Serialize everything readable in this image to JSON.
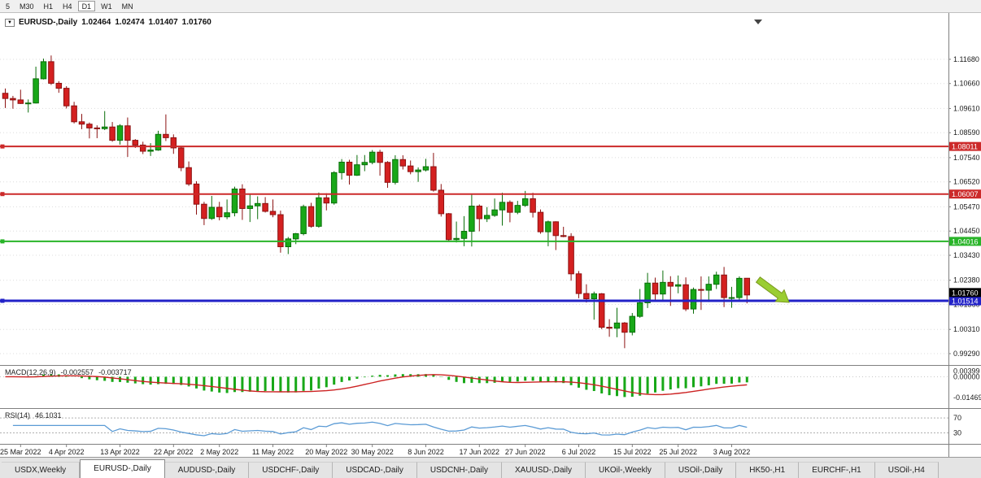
{
  "toolbar": {
    "periods": [
      {
        "label": "5",
        "active": false
      },
      {
        "label": "M30",
        "active": false
      },
      {
        "label": "H1",
        "active": false
      },
      {
        "label": "H4",
        "active": false
      },
      {
        "label": "D1",
        "active": true
      },
      {
        "label": "W1",
        "active": false
      },
      {
        "label": "MN",
        "active": false
      }
    ]
  },
  "chart": {
    "title": {
      "symbol": "EURUSD-,Daily",
      "open": "1.02464",
      "high": "1.02474",
      "low": "1.01407",
      "close": "1.01760"
    }
  },
  "indicators": {
    "macd": {
      "label": "MACD(12,26,9)",
      "value": "-0.002557",
      "signal_value": "-0.003717"
    },
    "rsi": {
      "label": "RSI(14)",
      "value": "46.1031"
    }
  },
  "price_axis": {
    "ticks": [
      "1.11680",
      "1.10660",
      "1.09610",
      "1.08590",
      "1.07540",
      "1.06520",
      "1.05470",
      "1.04450",
      "1.03430",
      "1.02380",
      "1.01360",
      "1.00310",
      "0.99290"
    ],
    "current": {
      "label": "1.01760",
      "price": 1.0176,
      "color": "#000000"
    }
  },
  "tabs": [
    {
      "label": "USDX,Weekly",
      "active": false
    },
    {
      "label": "EURUSD-,Daily",
      "active": true
    },
    {
      "label": "AUDUSD-,Daily",
      "active": false
    },
    {
      "label": "USDCHF-,Daily",
      "active": false
    },
    {
      "label": "USDCAD-,Daily",
      "active": false
    },
    {
      "label": "USDCNH-,Daily",
      "active": false
    },
    {
      "label": "XAUUSD-,Daily",
      "active": false
    },
    {
      "label": "UKOil-,Weekly",
      "active": false
    },
    {
      "label": "USOil-,Daily",
      "active": false
    },
    {
      "label": "HK50-,H1",
      "active": false
    },
    {
      "label": "EURCHF-,H1",
      "active": false
    },
    {
      "label": "USOil-,H4",
      "active": false
    }
  ],
  "chart_data": {
    "type": "candlestick",
    "title": "EURUSD-,Daily",
    "ohlc_display": "1.02464 1.02474 1.01407 1.01760",
    "y_axis": {
      "min": 0.9888,
      "max": 1.1356
    },
    "macd_scale": {
      "min": -0.021,
      "max": 0.006
    },
    "rsi_scale": {
      "min": 5,
      "max": 90
    },
    "colors": {
      "bull": "#18a818",
      "bull_border": "#0a6e0a",
      "bear": "#d42020",
      "bear_border": "#8c1212",
      "macd_hist": "#18a818",
      "macd_signal": "#cc2222",
      "rsi": "#5b9bd5",
      "grid": "#dcdcdc"
    },
    "hlines": [
      {
        "label": "1.08011",
        "price": 1.08011,
        "color": "#cc2a2a",
        "width": 2
      },
      {
        "label": "1.06007",
        "price": 1.06007,
        "color": "#cc2a2a",
        "width": 2
      },
      {
        "label": "1.04016",
        "price": 1.04016,
        "color": "#28b428",
        "width": 2
      },
      {
        "label": "1.01514",
        "price": 1.01514,
        "color": "#2222c8",
        "width": 3
      }
    ],
    "annotations": {
      "arrow": {
        "color": "#9acd32",
        "border": "#7a9a1e",
        "direction": "down-right"
      }
    },
    "macd_axis_labels": [
      {
        "text": "0.00399",
        "value": 0.00399
      },
      {
        "text": "0.00000",
        "value": 0
      },
      {
        "text": "-0.01469",
        "value": -0.01469
      }
    ],
    "rsi_levels": [
      70,
      30
    ],
    "x_ticks": [
      {
        "label": "25 Mar 2022",
        "index": 2
      },
      {
        "label": "4 Apr 2022",
        "index": 8
      },
      {
        "label": "13 Apr 2022",
        "index": 15
      },
      {
        "label": "22 Apr 2022",
        "index": 22
      },
      {
        "label": "2 May 2022",
        "index": 28
      },
      {
        "label": "11 May 2022",
        "index": 35
      },
      {
        "label": "20 May 2022",
        "index": 42
      },
      {
        "label": "30 May 2022",
        "index": 48
      },
      {
        "label": "8 Jun 2022",
        "index": 55
      },
      {
        "label": "17 Jun 2022",
        "index": 62
      },
      {
        "label": "27 Jun 2022",
        "index": 68
      },
      {
        "label": "6 Jul 2022",
        "index": 75
      },
      {
        "label": "15 Jul 2022",
        "index": 82
      },
      {
        "label": "25 Jul 2022",
        "index": 88
      },
      {
        "label": "3 Aug 2022",
        "index": 95
      }
    ],
    "candles": [
      [
        1.1025,
        1.1045,
        1.0963,
        1.1003
      ],
      [
        1.1003,
        1.1014,
        1.096,
        1.0997
      ],
      [
        1.0997,
        1.104,
        1.098,
        1.0982
      ],
      [
        1.0982,
        1.0999,
        1.0944,
        1.0984
      ],
      [
        1.0984,
        1.1137,
        1.0982,
        1.1086
      ],
      [
        1.1086,
        1.1171,
        1.1083,
        1.1158
      ],
      [
        1.1158,
        1.1184,
        1.106,
        1.1067
      ],
      [
        1.1067,
        1.1076,
        1.1027,
        1.1046
      ],
      [
        1.1046,
        1.1055,
        1.0961,
        1.0972
      ],
      [
        1.0972,
        1.0989,
        1.0898,
        1.0905
      ],
      [
        1.0905,
        1.0938,
        1.0874,
        1.0895
      ],
      [
        1.0895,
        1.0902,
        1.0835,
        1.0879
      ],
      [
        1.0879,
        1.089,
        1.0836,
        1.0876
      ],
      [
        1.0876,
        1.095,
        1.087,
        1.0883
      ],
      [
        1.0883,
        1.0904,
        1.0821,
        1.0827
      ],
      [
        1.0827,
        1.0895,
        1.0809,
        1.0888
      ],
      [
        1.0888,
        1.0923,
        1.0757,
        1.0827
      ],
      [
        1.0827,
        1.0832,
        1.0795,
        1.0807
      ],
      [
        1.0807,
        1.0821,
        1.0769,
        1.0781
      ],
      [
        1.0781,
        1.0815,
        1.0761,
        1.0786
      ],
      [
        1.0786,
        1.0867,
        1.0783,
        1.0852
      ],
      [
        1.0852,
        1.0936,
        1.0824,
        1.0838
      ],
      [
        1.0838,
        1.0852,
        1.077,
        1.0795
      ],
      [
        1.0795,
        1.0803,
        1.0697,
        1.0712
      ],
      [
        1.0712,
        1.0738,
        1.0635,
        1.0643
      ],
      [
        1.0643,
        1.0655,
        1.0514,
        1.0558
      ],
      [
        1.0558,
        1.0568,
        1.047,
        1.0498
      ],
      [
        1.0498,
        1.0593,
        1.0492,
        1.0545
      ],
      [
        1.0545,
        1.0568,
        1.049,
        1.0505
      ],
      [
        1.0505,
        1.0578,
        1.0495,
        1.0522
      ],
      [
        1.0522,
        1.0632,
        1.0507,
        1.0622
      ],
      [
        1.0622,
        1.0642,
        1.0492,
        1.054
      ],
      [
        1.054,
        1.0599,
        1.0483,
        1.0551
      ],
      [
        1.0551,
        1.0591,
        1.0495,
        1.0561
      ],
      [
        1.0561,
        1.0588,
        1.0523,
        1.0528
      ],
      [
        1.0528,
        1.0578,
        1.0503,
        1.0514
      ],
      [
        1.0514,
        1.0531,
        1.0354,
        1.0379
      ],
      [
        1.0379,
        1.042,
        1.0348,
        1.0412
      ],
      [
        1.0412,
        1.0437,
        1.039,
        1.0434
      ],
      [
        1.0434,
        1.0556,
        1.0427,
        1.0548
      ],
      [
        1.0548,
        1.0564,
        1.0459,
        1.0465
      ],
      [
        1.0465,
        1.0607,
        1.0459,
        1.0585
      ],
      [
        1.0585,
        1.0604,
        1.0532,
        1.0563
      ],
      [
        1.0563,
        1.0697,
        1.0556,
        1.0691
      ],
      [
        1.0691,
        1.0748,
        1.0662,
        1.0735
      ],
      [
        1.0735,
        1.0745,
        1.0641,
        1.068
      ],
      [
        1.068,
        1.0765,
        1.0677,
        1.0724
      ],
      [
        1.0724,
        1.0765,
        1.0697,
        1.0734
      ],
      [
        1.0734,
        1.0786,
        1.0726,
        1.0777
      ],
      [
        1.0777,
        1.0787,
        1.0678,
        1.0734
      ],
      [
        1.0734,
        1.0739,
        1.0627,
        1.065
      ],
      [
        1.065,
        1.0764,
        1.0641,
        1.0746
      ],
      [
        1.0746,
        1.0764,
        1.0704,
        1.0719
      ],
      [
        1.0719,
        1.0742,
        1.0684,
        1.0695
      ],
      [
        1.0695,
        1.0713,
        1.0652,
        1.0702
      ],
      [
        1.0702,
        1.0749,
        1.0696,
        1.0716
      ],
      [
        1.0716,
        1.0774,
        1.0611,
        1.0617
      ],
      [
        1.0617,
        1.0643,
        1.0506,
        1.0518
      ],
      [
        1.0518,
        1.0521,
        1.0399,
        1.0409
      ],
      [
        1.0409,
        1.0485,
        1.0397,
        1.0414
      ],
      [
        1.0414,
        1.0508,
        1.0381,
        1.0444
      ],
      [
        1.0444,
        1.0601,
        1.038,
        1.055
      ],
      [
        1.055,
        1.0557,
        1.0444,
        1.0497
      ],
      [
        1.0497,
        1.0546,
        1.0483,
        1.0511
      ],
      [
        1.0511,
        1.0582,
        1.0505,
        1.0534
      ],
      [
        1.0534,
        1.0606,
        1.0468,
        1.0566
      ],
      [
        1.0566,
        1.0574,
        1.0482,
        1.0524
      ],
      [
        1.0524,
        1.0572,
        1.0516,
        1.0553
      ],
      [
        1.0553,
        1.0614,
        1.0547,
        1.0581
      ],
      [
        1.0581,
        1.0606,
        1.0502,
        1.0524
      ],
      [
        1.0524,
        1.0536,
        1.0434,
        1.0442
      ],
      [
        1.0442,
        1.0489,
        1.0381,
        1.0484
      ],
      [
        1.0484,
        1.0486,
        1.0365,
        1.0426
      ],
      [
        1.0426,
        1.0463,
        1.0419,
        1.0422
      ],
      [
        1.0422,
        1.0436,
        1.0236,
        1.0265
      ],
      [
        1.0265,
        1.0277,
        1.0162,
        1.0182
      ],
      [
        1.0182,
        1.0221,
        1.0144,
        1.016
      ],
      [
        1.016,
        1.019,
        1.0072,
        1.0181
      ],
      [
        1.0181,
        1.0184,
        1.0032,
        1.004
      ],
      [
        1.004,
        1.0074,
        1.0,
        1.0036
      ],
      [
        1.0036,
        1.0122,
        0.9998,
        1.0058
      ],
      [
        1.0058,
        1.0062,
        0.9952,
        1.0019
      ],
      [
        1.0019,
        1.01,
        1.0006,
        1.0086
      ],
      [
        1.0086,
        1.0201,
        1.008,
        1.0143
      ],
      [
        1.0143,
        1.0269,
        1.0121,
        1.0226
      ],
      [
        1.0226,
        1.0249,
        1.0155,
        1.018
      ],
      [
        1.018,
        1.0279,
        1.0151,
        1.0229
      ],
      [
        1.0229,
        1.0255,
        1.013,
        1.0213
      ],
      [
        1.0213,
        1.0258,
        1.0183,
        1.0219
      ],
      [
        1.0219,
        1.025,
        1.0108,
        1.0117
      ],
      [
        1.0117,
        1.0207,
        1.0097,
        1.0199
      ],
      [
        1.0199,
        1.0254,
        1.0113,
        1.0196
      ],
      [
        1.0196,
        1.0254,
        1.0146,
        1.0221
      ],
      [
        1.0221,
        1.0274,
        1.0201,
        1.026
      ],
      [
        1.026,
        1.0294,
        1.0125,
        1.0165
      ],
      [
        1.0165,
        1.021,
        1.0122,
        1.0165
      ],
      [
        1.0165,
        1.0254,
        1.0152,
        1.0246
      ],
      [
        1.02464,
        1.02474,
        1.01407,
        1.0176
      ]
    ]
  }
}
